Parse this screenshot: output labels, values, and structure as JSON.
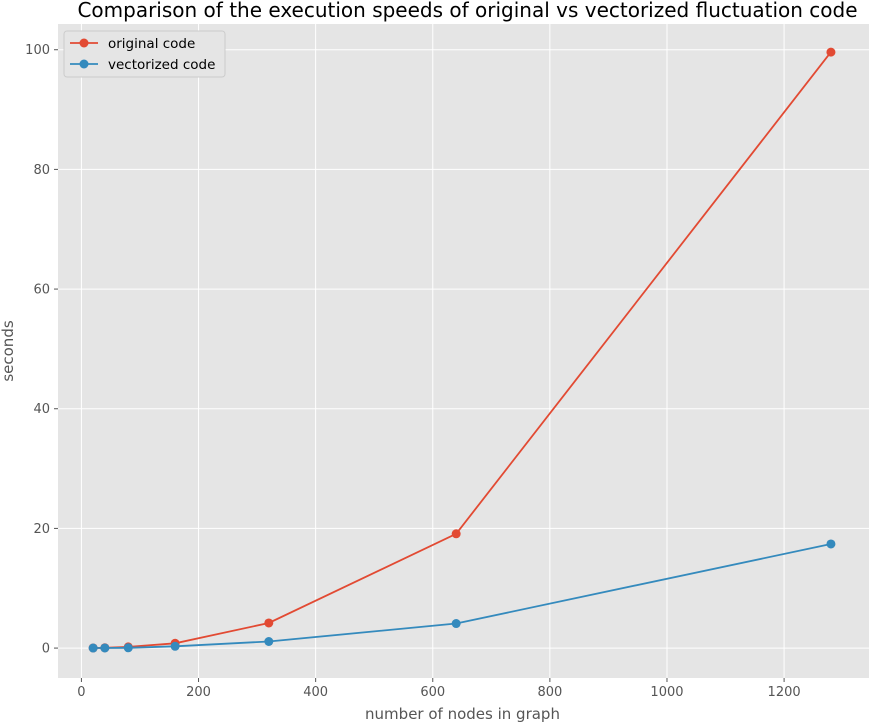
{
  "chart_data": {
    "type": "line",
    "title": "Comparison of the execution speeds of original vs vectorized fluctuation code",
    "xlabel": "number of nodes in graph",
    "ylabel": "seconds",
    "xlim": [
      -40,
      1345
    ],
    "ylim": [
      -5,
      104.3
    ],
    "xticks": [
      0,
      200,
      400,
      600,
      800,
      1000,
      1200
    ],
    "yticks": [
      0,
      20,
      40,
      60,
      80,
      100
    ],
    "grid": true,
    "legend_position": "top-left",
    "series": [
      {
        "name": "original code",
        "color": "#e24a33",
        "x": [
          20,
          40,
          80,
          160,
          320,
          640,
          1280
        ],
        "y": [
          0.02,
          0.05,
          0.2,
          0.8,
          4.2,
          19.1,
          99.6
        ]
      },
      {
        "name": "vectorized code",
        "color": "#348abd",
        "x": [
          20,
          40,
          80,
          160,
          320,
          640,
          1280
        ],
        "y": [
          0.01,
          0.02,
          0.05,
          0.3,
          1.1,
          4.1,
          17.4
        ]
      }
    ]
  }
}
